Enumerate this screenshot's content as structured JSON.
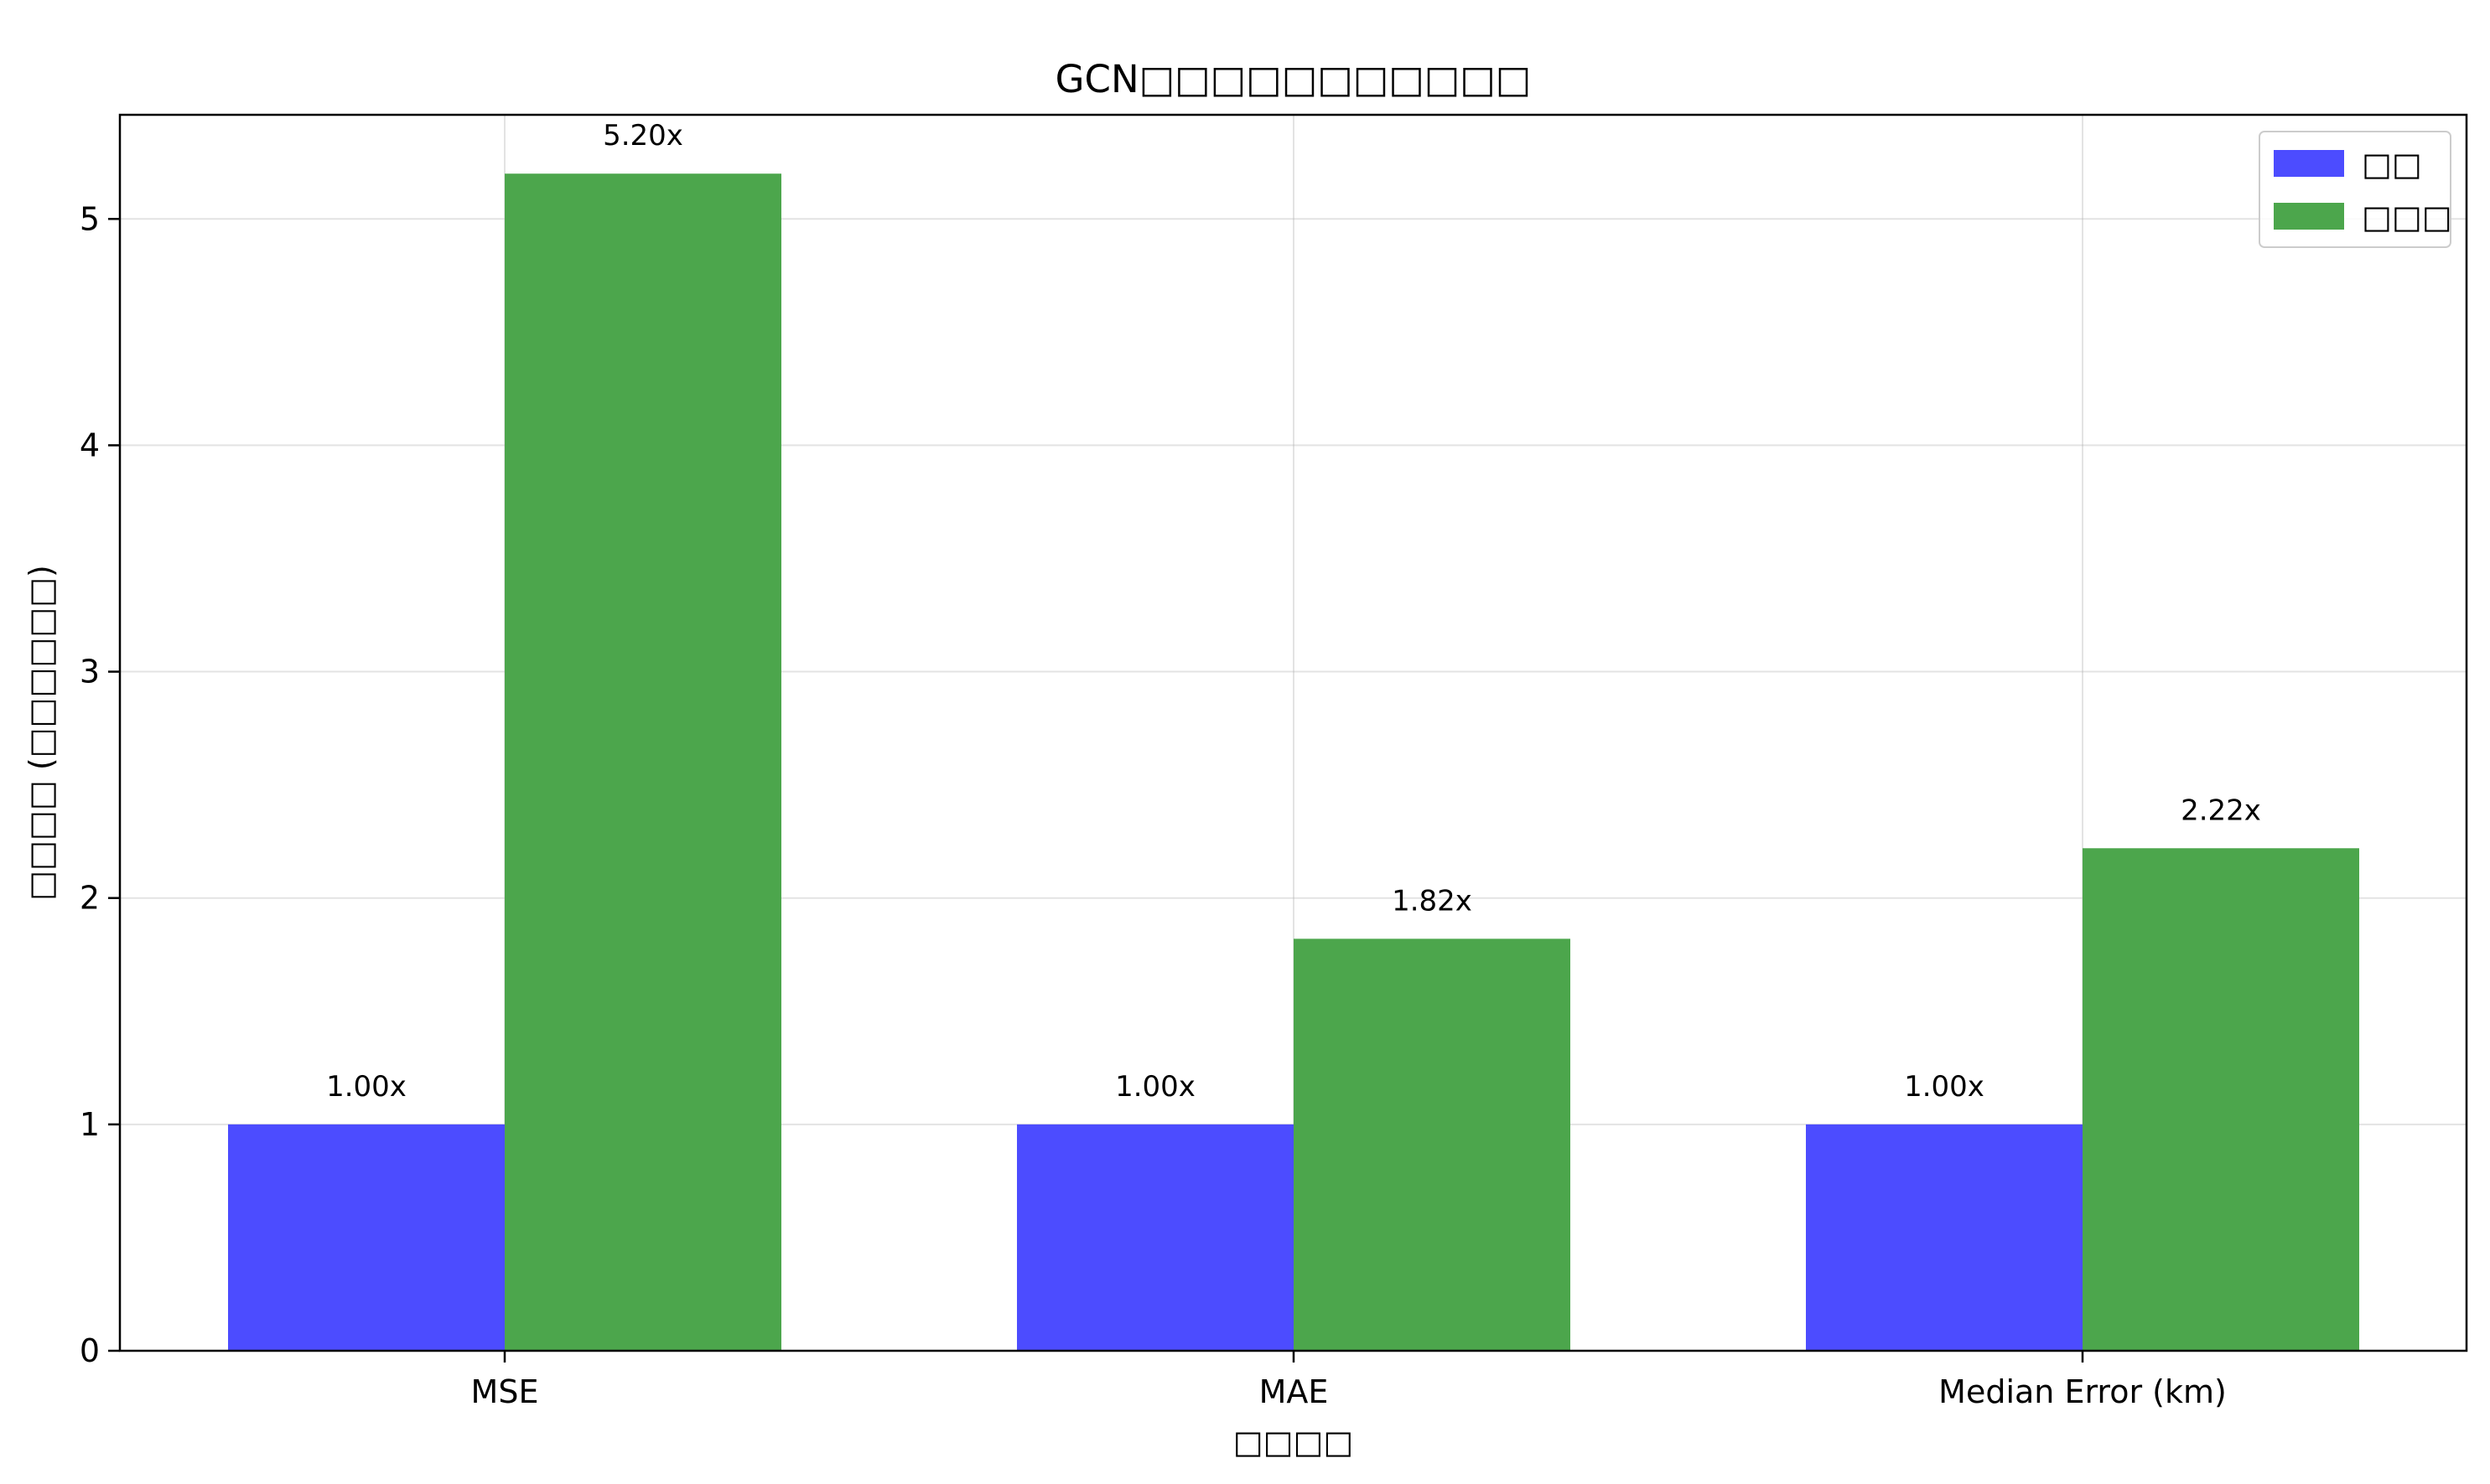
{
  "chart_data": {
    "type": "bar",
    "title": "GCN□□□□□□□□□□□",
    "xlabel": "□□□□",
    "ylabel": "□□□□ (□□□□□□)",
    "categories": [
      "MSE",
      "MAE",
      "Median Error (km)"
    ],
    "series": [
      {
        "name": "□□",
        "color": "#4c4cff",
        "values": [
          1.0,
          1.0,
          1.0
        ],
        "labels": [
          "1.00x",
          "1.00x",
          "1.00x"
        ]
      },
      {
        "name": "□□□",
        "color": "#4ca64c",
        "values": [
          5.2,
          1.82,
          2.22
        ],
        "labels": [
          "5.20x",
          "1.82x",
          "2.22x"
        ]
      }
    ],
    "ylim": [
      0,
      5.46
    ],
    "yticks": [
      "0",
      "1",
      "2",
      "3",
      "4",
      "5"
    ],
    "grid": true,
    "legend_position": "top-right"
  }
}
